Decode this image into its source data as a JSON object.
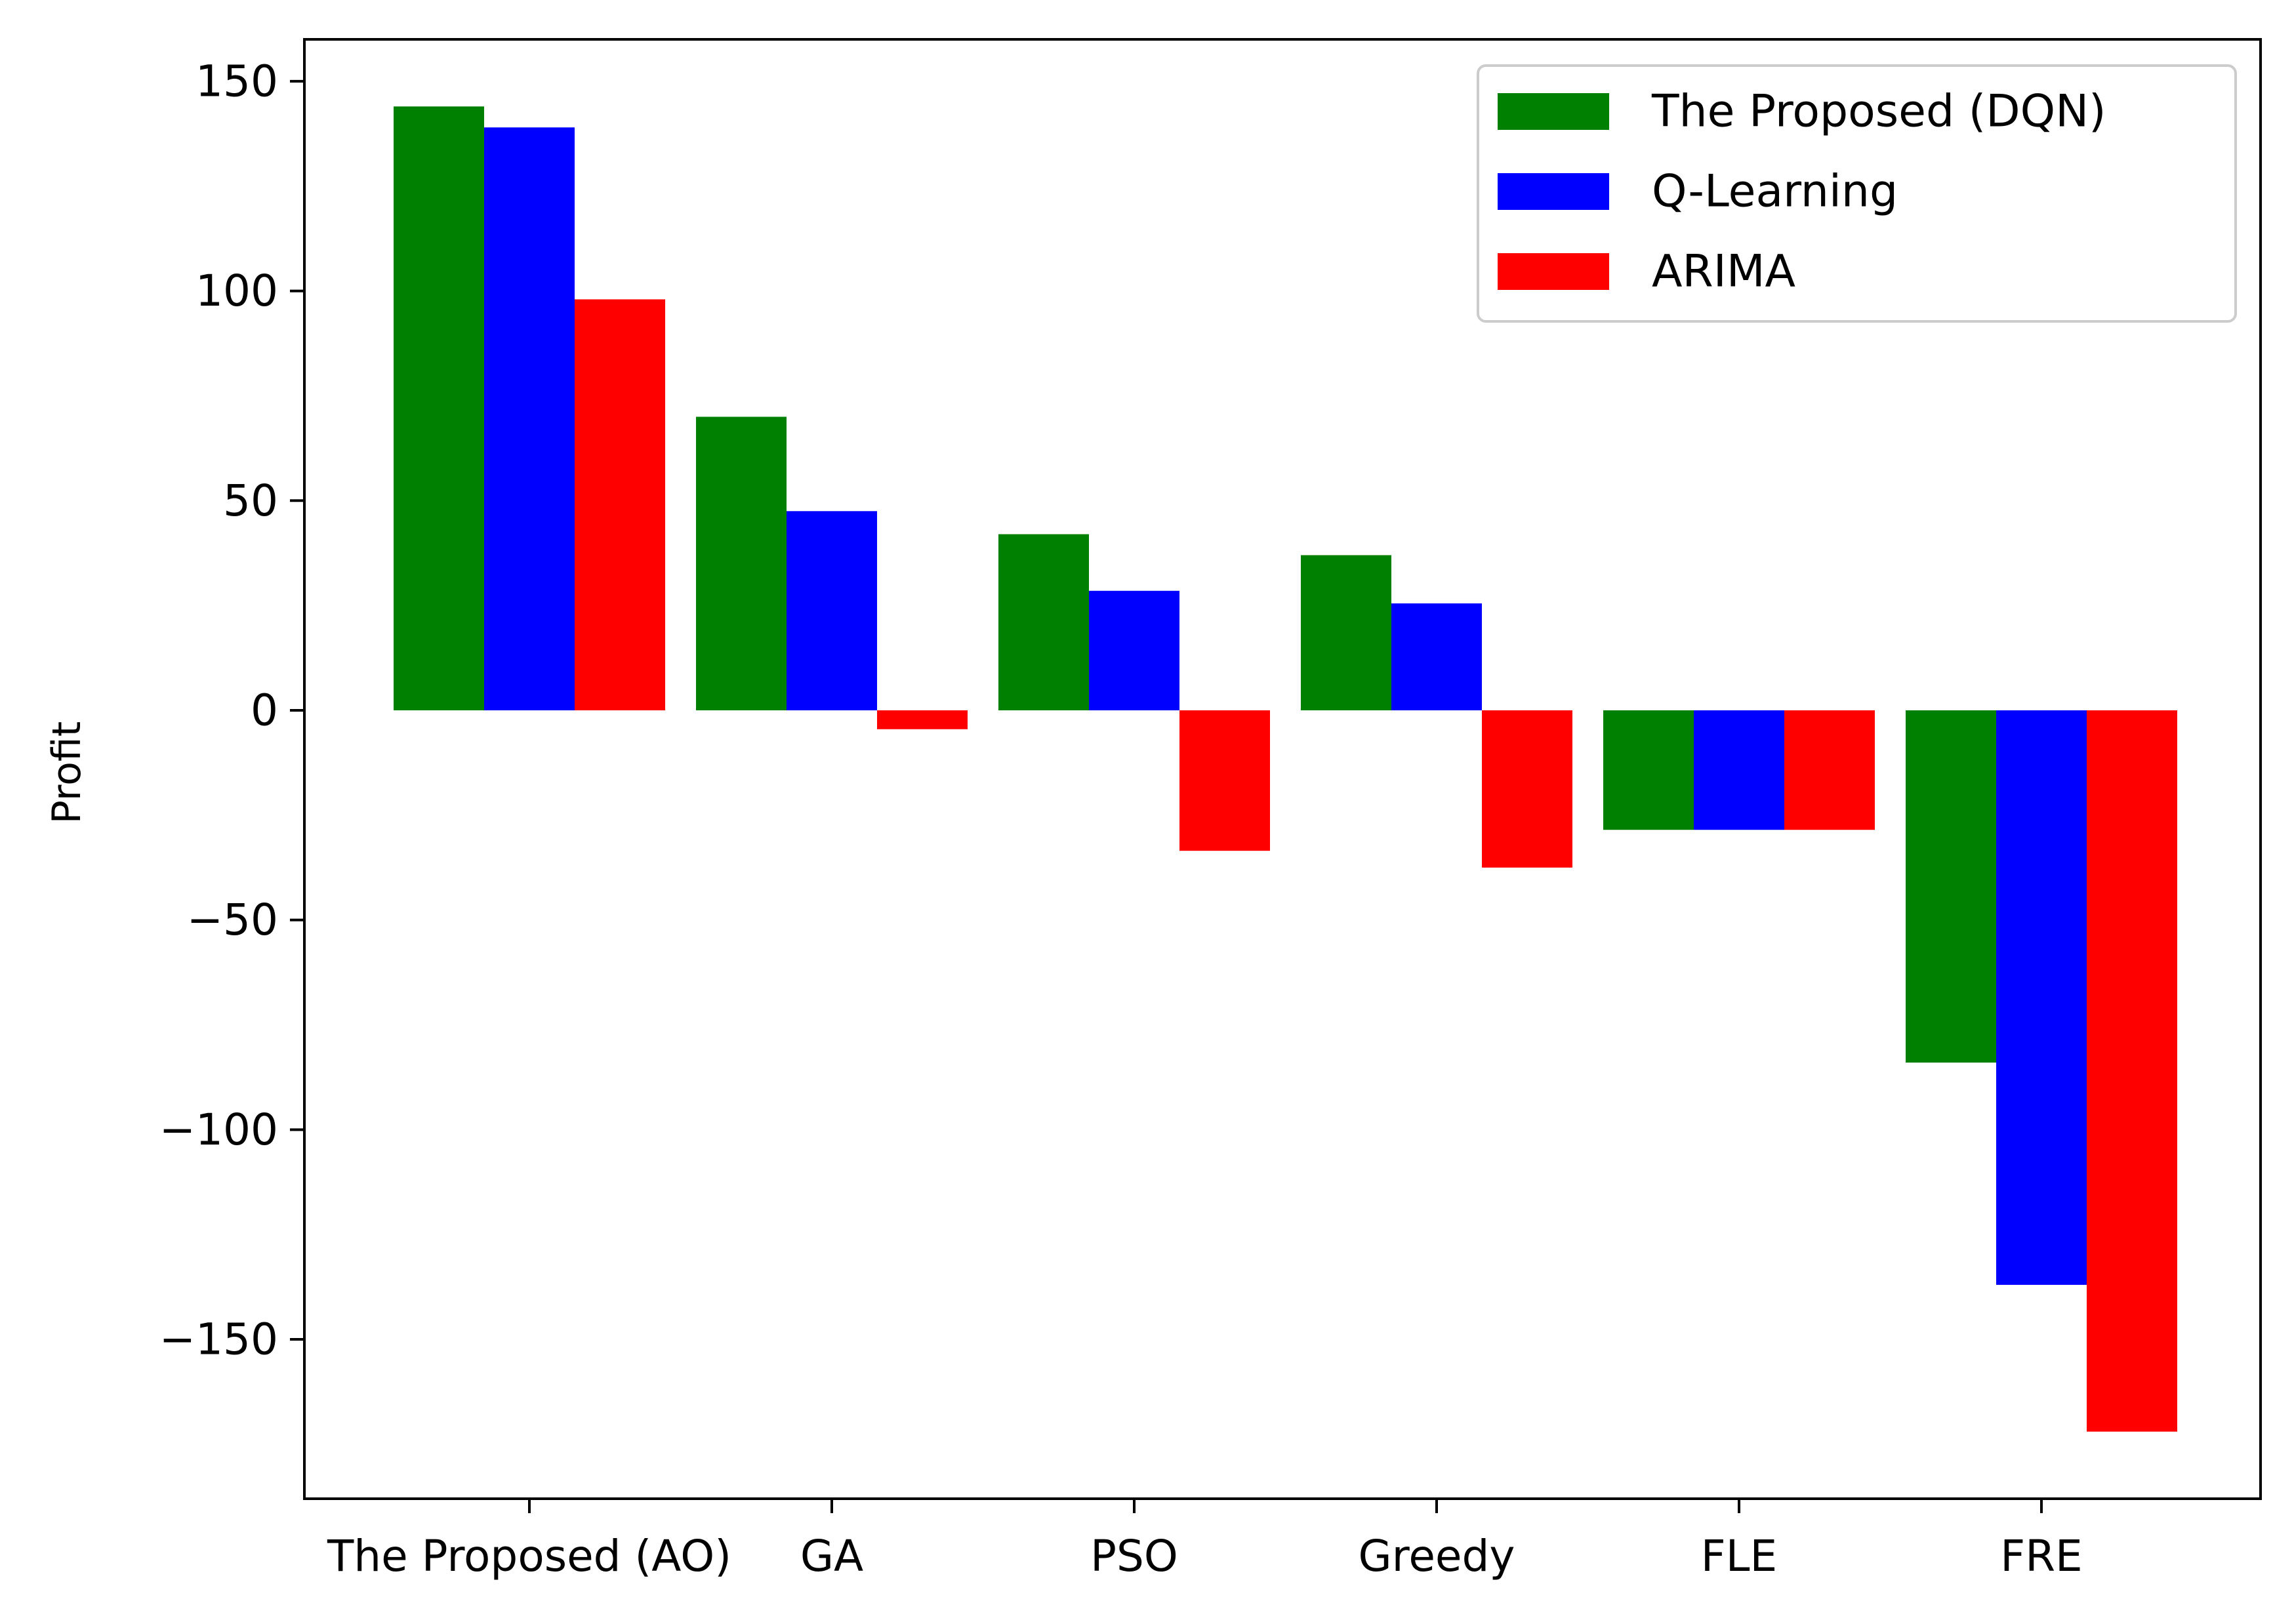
{
  "chart_data": {
    "type": "bar",
    "title": "",
    "xlabel": "",
    "ylabel": "Profit",
    "categories": [
      "The Proposed (AO)",
      "GA",
      "PSO",
      "Greedy",
      "FLE",
      "FRE"
    ],
    "series": [
      {
        "name": "The Proposed (DQN)",
        "color": "#008000",
        "values": [
          144,
          70,
          42,
          37,
          -28.5,
          -84
        ]
      },
      {
        "name": "Q-Learning",
        "color": "#0000ff",
        "values": [
          139,
          47.5,
          28.5,
          25.5,
          -28.5,
          -137
        ]
      },
      {
        "name": "ARIMA",
        "color": "#ff0000",
        "values": [
          98,
          -4.5,
          -33.5,
          -37.5,
          -28.5,
          -172
        ]
      }
    ],
    "yticks": [
      150,
      100,
      50,
      0,
      -50,
      -100,
      -150
    ],
    "ytick_labels": [
      "150",
      "100",
      "50",
      "0",
      "−50",
      "−100",
      "−150"
    ],
    "ylim": [
      -188,
      160
    ],
    "grid": false,
    "legend_position": "top-right"
  }
}
